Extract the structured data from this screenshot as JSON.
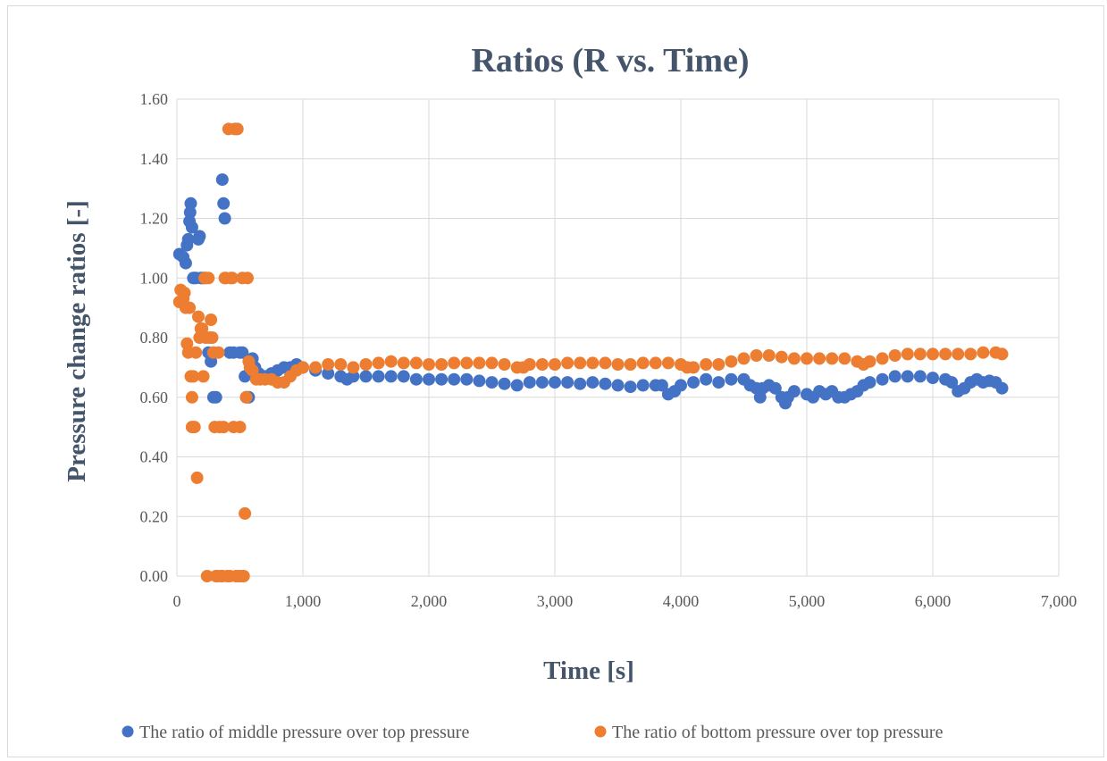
{
  "chart_data": {
    "type": "scatter",
    "title": "Ratios (R vs. Time)",
    "xlabel": "Time [s]",
    "ylabel": "Pressure change ratios  [-]",
    "xlim": [
      0,
      7000
    ],
    "ylim": [
      0,
      1.6
    ],
    "x_ticks": [
      "0",
      "1,000",
      "2,000",
      "3,000",
      "4,000",
      "5,000",
      "6,000",
      "7,000"
    ],
    "y_ticks": [
      "0.00",
      "0.20",
      "0.40",
      "0.60",
      "0.80",
      "1.00",
      "1.20",
      "1.40",
      "1.60"
    ],
    "x_tick_values": [
      0,
      1000,
      2000,
      3000,
      4000,
      5000,
      6000,
      7000
    ],
    "y_tick_values": [
      0,
      0.2,
      0.4,
      0.6,
      0.8,
      1.0,
      1.2,
      1.4,
      1.6
    ],
    "grid": true,
    "legend_position": "bottom",
    "series": [
      {
        "name": "The ratio of middle pressure over top pressure",
        "color": "#4472c4",
        "points": [
          [
            20,
            1.08
          ],
          [
            50,
            1.07
          ],
          [
            70,
            1.05
          ],
          [
            80,
            1.11
          ],
          [
            90,
            1.13
          ],
          [
            100,
            1.19
          ],
          [
            105,
            1.22
          ],
          [
            110,
            1.25
          ],
          [
            120,
            1.17
          ],
          [
            130,
            1.0
          ],
          [
            140,
            1.0
          ],
          [
            150,
            1.0
          ],
          [
            170,
            1.13
          ],
          [
            180,
            1.14
          ],
          [
            190,
            1.0
          ],
          [
            200,
            1.0
          ],
          [
            210,
            1.0
          ],
          [
            230,
            1.0
          ],
          [
            250,
            0.75
          ],
          [
            270,
            0.72
          ],
          [
            290,
            0.6
          ],
          [
            310,
            0.6
          ],
          [
            360,
            1.33
          ],
          [
            370,
            1.25
          ],
          [
            380,
            1.2
          ],
          [
            420,
            0.75
          ],
          [
            450,
            0.75
          ],
          [
            500,
            0.75
          ],
          [
            520,
            0.75
          ],
          [
            540,
            0.67
          ],
          [
            550,
            0.6
          ],
          [
            570,
            0.6
          ],
          [
            600,
            0.73
          ],
          [
            620,
            0.7
          ],
          [
            650,
            0.68
          ],
          [
            700,
            0.67
          ],
          [
            750,
            0.68
          ],
          [
            800,
            0.69
          ],
          [
            850,
            0.7
          ],
          [
            900,
            0.7
          ],
          [
            950,
            0.71
          ],
          [
            1000,
            0.7
          ],
          [
            1100,
            0.69
          ],
          [
            1200,
            0.68
          ],
          [
            1300,
            0.67
          ],
          [
            1350,
            0.66
          ],
          [
            1400,
            0.67
          ],
          [
            1500,
            0.67
          ],
          [
            1600,
            0.67
          ],
          [
            1700,
            0.67
          ],
          [
            1800,
            0.67
          ],
          [
            1900,
            0.66
          ],
          [
            2000,
            0.66
          ],
          [
            2100,
            0.66
          ],
          [
            2200,
            0.66
          ],
          [
            2300,
            0.66
          ],
          [
            2400,
            0.655
          ],
          [
            2500,
            0.65
          ],
          [
            2600,
            0.645
          ],
          [
            2700,
            0.64
          ],
          [
            2800,
            0.65
          ],
          [
            2900,
            0.65
          ],
          [
            3000,
            0.65
          ],
          [
            3100,
            0.65
          ],
          [
            3200,
            0.645
          ],
          [
            3300,
            0.65
          ],
          [
            3400,
            0.645
          ],
          [
            3500,
            0.64
          ],
          [
            3600,
            0.635
          ],
          [
            3700,
            0.64
          ],
          [
            3800,
            0.64
          ],
          [
            3850,
            0.64
          ],
          [
            3900,
            0.61
          ],
          [
            3950,
            0.62
          ],
          [
            4000,
            0.64
          ],
          [
            4100,
            0.65
          ],
          [
            4200,
            0.66
          ],
          [
            4300,
            0.65
          ],
          [
            4400,
            0.66
          ],
          [
            4500,
            0.66
          ],
          [
            4550,
            0.64
          ],
          [
            4600,
            0.63
          ],
          [
            4630,
            0.6
          ],
          [
            4650,
            0.63
          ],
          [
            4700,
            0.64
          ],
          [
            4750,
            0.63
          ],
          [
            4800,
            0.6
          ],
          [
            4830,
            0.58
          ],
          [
            4850,
            0.6
          ],
          [
            4900,
            0.62
          ],
          [
            5000,
            0.61
          ],
          [
            5050,
            0.6
          ],
          [
            5100,
            0.62
          ],
          [
            5150,
            0.61
          ],
          [
            5200,
            0.62
          ],
          [
            5250,
            0.6
          ],
          [
            5300,
            0.6
          ],
          [
            5350,
            0.61
          ],
          [
            5400,
            0.62
          ],
          [
            5450,
            0.64
          ],
          [
            5500,
            0.65
          ],
          [
            5600,
            0.66
          ],
          [
            5700,
            0.67
          ],
          [
            5800,
            0.67
          ],
          [
            5900,
            0.67
          ],
          [
            6000,
            0.665
          ],
          [
            6100,
            0.66
          ],
          [
            6150,
            0.65
          ],
          [
            6200,
            0.62
          ],
          [
            6250,
            0.63
          ],
          [
            6300,
            0.65
          ],
          [
            6350,
            0.66
          ],
          [
            6400,
            0.65
          ],
          [
            6450,
            0.655
          ],
          [
            6500,
            0.65
          ],
          [
            6550,
            0.63
          ]
        ]
      },
      {
        "name": "The ratio of bottom pressure over top pressure",
        "color": "#ed7d31",
        "points": [
          [
            20,
            0.92
          ],
          [
            30,
            0.96
          ],
          [
            50,
            0.93
          ],
          [
            60,
            0.95
          ],
          [
            70,
            0.9
          ],
          [
            80,
            0.78
          ],
          [
            90,
            0.75
          ],
          [
            100,
            0.9
          ],
          [
            110,
            0.67
          ],
          [
            120,
            0.6
          ],
          [
            120,
            0.5
          ],
          [
            130,
            0.67
          ],
          [
            140,
            0.5
          ],
          [
            150,
            0.75
          ],
          [
            160,
            0.33
          ],
          [
            170,
            0.87
          ],
          [
            180,
            0.8
          ],
          [
            190,
            0.83
          ],
          [
            200,
            0.83
          ],
          [
            210,
            0.67
          ],
          [
            220,
            1.0
          ],
          [
            230,
            0.8
          ],
          [
            240,
            0.0
          ],
          [
            250,
            1.0
          ],
          [
            260,
            0.8
          ],
          [
            270,
            0.86
          ],
          [
            280,
            0.8
          ],
          [
            290,
            0.75
          ],
          [
            300,
            0.5
          ],
          [
            310,
            0.0
          ],
          [
            320,
            0.0
          ],
          [
            330,
            0.75
          ],
          [
            340,
            0.5
          ],
          [
            350,
            0.0
          ],
          [
            360,
            0.0
          ],
          [
            370,
            0.5
          ],
          [
            380,
            1.0
          ],
          [
            390,
            1.0
          ],
          [
            400,
            0.0
          ],
          [
            410,
            1.5
          ],
          [
            420,
            0.0
          ],
          [
            430,
            1.0
          ],
          [
            440,
            1.0
          ],
          [
            450,
            0.5
          ],
          [
            460,
            1.5
          ],
          [
            470,
            0.0
          ],
          [
            480,
            1.5
          ],
          [
            490,
            0.0
          ],
          [
            500,
            0.5
          ],
          [
            510,
            0.0
          ],
          [
            520,
            1.0
          ],
          [
            530,
            0.0
          ],
          [
            540,
            0.21
          ],
          [
            550,
            0.6
          ],
          [
            560,
            1.0
          ],
          [
            570,
            0.72
          ],
          [
            580,
            0.7
          ],
          [
            600,
            0.69
          ],
          [
            630,
            0.66
          ],
          [
            660,
            0.66
          ],
          [
            700,
            0.66
          ],
          [
            750,
            0.66
          ],
          [
            800,
            0.65
          ],
          [
            850,
            0.65
          ],
          [
            900,
            0.67
          ],
          [
            950,
            0.69
          ],
          [
            1000,
            0.7
          ],
          [
            1100,
            0.7
          ],
          [
            1200,
            0.71
          ],
          [
            1300,
            0.71
          ],
          [
            1400,
            0.7
          ],
          [
            1500,
            0.71
          ],
          [
            1600,
            0.715
          ],
          [
            1700,
            0.72
          ],
          [
            1800,
            0.715
          ],
          [
            1900,
            0.715
          ],
          [
            2000,
            0.71
          ],
          [
            2100,
            0.71
          ],
          [
            2200,
            0.715
          ],
          [
            2300,
            0.715
          ],
          [
            2400,
            0.715
          ],
          [
            2500,
            0.715
          ],
          [
            2600,
            0.71
          ],
          [
            2700,
            0.7
          ],
          [
            2750,
            0.7
          ],
          [
            2800,
            0.71
          ],
          [
            2900,
            0.71
          ],
          [
            3000,
            0.71
          ],
          [
            3100,
            0.715
          ],
          [
            3200,
            0.715
          ],
          [
            3300,
            0.715
          ],
          [
            3400,
            0.715
          ],
          [
            3500,
            0.71
          ],
          [
            3600,
            0.71
          ],
          [
            3700,
            0.715
          ],
          [
            3800,
            0.715
          ],
          [
            3900,
            0.715
          ],
          [
            4000,
            0.71
          ],
          [
            4050,
            0.7
          ],
          [
            4100,
            0.7
          ],
          [
            4200,
            0.71
          ],
          [
            4300,
            0.71
          ],
          [
            4400,
            0.72
          ],
          [
            4500,
            0.73
          ],
          [
            4600,
            0.74
          ],
          [
            4700,
            0.74
          ],
          [
            4800,
            0.735
          ],
          [
            4900,
            0.73
          ],
          [
            5000,
            0.73
          ],
          [
            5100,
            0.73
          ],
          [
            5200,
            0.73
          ],
          [
            5300,
            0.73
          ],
          [
            5400,
            0.72
          ],
          [
            5450,
            0.71
          ],
          [
            5500,
            0.72
          ],
          [
            5600,
            0.73
          ],
          [
            5700,
            0.74
          ],
          [
            5800,
            0.745
          ],
          [
            5900,
            0.745
          ],
          [
            6000,
            0.745
          ],
          [
            6100,
            0.745
          ],
          [
            6200,
            0.745
          ],
          [
            6300,
            0.745
          ],
          [
            6400,
            0.75
          ],
          [
            6500,
            0.75
          ],
          [
            6550,
            0.745
          ]
        ]
      }
    ]
  }
}
